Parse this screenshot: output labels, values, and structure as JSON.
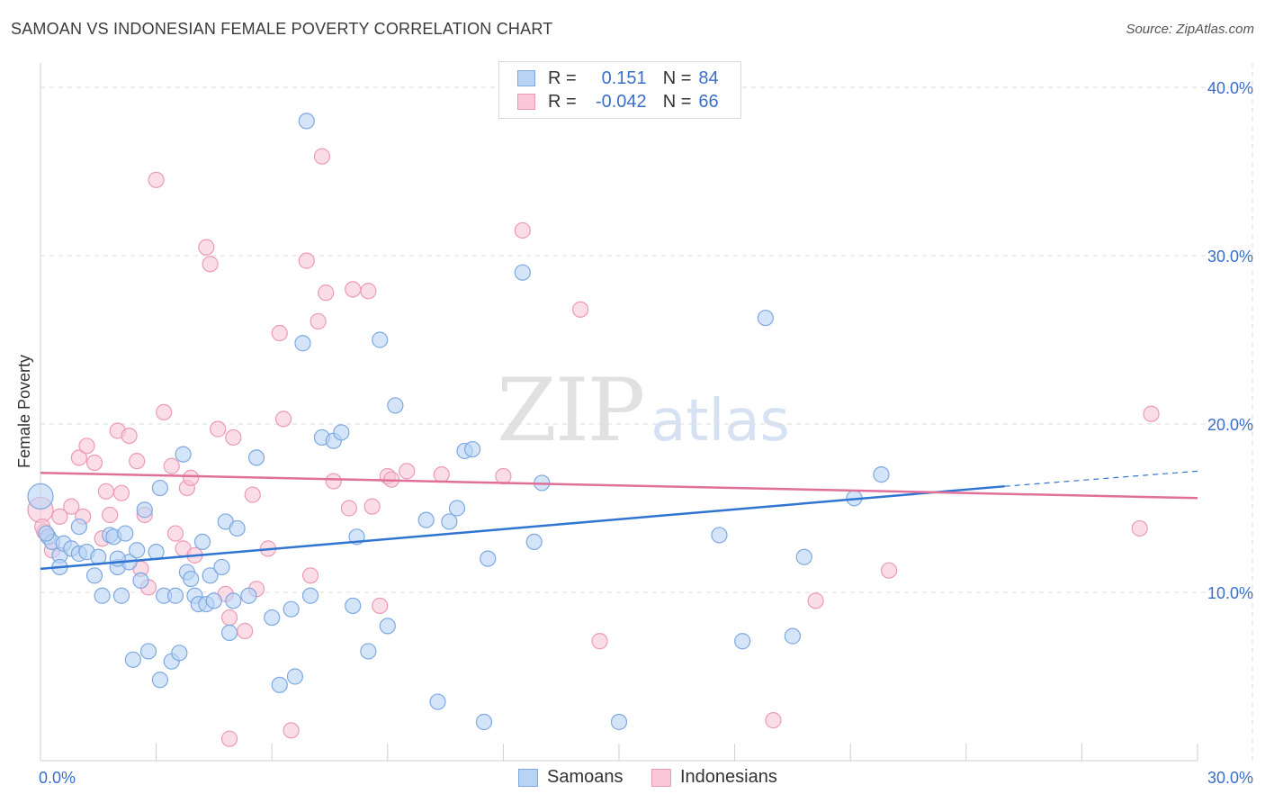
{
  "header": {
    "title": "SAMOAN VS INDONESIAN FEMALE POVERTY CORRELATION CHART",
    "source": "Source: ZipAtlas.com"
  },
  "watermark": {
    "zip": "ZIP",
    "atlas": "atlas"
  },
  "legend": {
    "rows": [
      {
        "r_label": "R =",
        "r_value": "0.151",
        "n_label": "N =",
        "n_value": "84"
      },
      {
        "r_label": "R =",
        "r_value": "-0.042",
        "n_label": "N =",
        "n_value": "66"
      }
    ]
  },
  "bottom_legend": {
    "samoans": "Samoans",
    "indonesians": "Indonesians"
  },
  "colors": {
    "samoan_fill": "#b9d3f5",
    "samoan_stroke": "#7ea9e0",
    "samoan_line": "#2f75d1",
    "indonesian_fill": "#f9c7d7",
    "indonesian_stroke": "#ec9ab5",
    "indonesian_line": "#e0709a",
    "tick_text": "#3a6fc8",
    "grid": "#dddddd"
  },
  "chart_data": {
    "type": "scatter",
    "title": "SAMOAN VS INDONESIAN FEMALE POVERTY CORRELATION CHART",
    "xlabel": "",
    "ylabel": "Female Poverty",
    "xlim": [
      0,
      30
    ],
    "ylim": [
      0,
      40
    ],
    "x_tick_labels": [
      "0.0%",
      "30.0%"
    ],
    "y_ticks": [
      10,
      20,
      30,
      40
    ],
    "y_tick_labels": [
      "10.0%",
      "20.0%",
      "30.0%",
      "40.0%"
    ],
    "grid": true,
    "legend_position": "top-center",
    "series": [
      {
        "name": "Samoans",
        "r": 0.151,
        "n": 84,
        "trend": {
          "x": [
            0,
            25
          ],
          "y": [
            11.4,
            16.3
          ],
          "dash_to": [
            30,
            17.2
          ]
        },
        "points": [
          [
            0.0,
            15.7
          ],
          [
            0.2,
            13.3
          ],
          [
            0.3,
            13.0
          ],
          [
            0.5,
            12.2
          ],
          [
            0.5,
            11.5
          ],
          [
            0.6,
            12.9
          ],
          [
            0.8,
            12.6
          ],
          [
            1.0,
            12.3
          ],
          [
            1.0,
            13.9
          ],
          [
            1.2,
            12.4
          ],
          [
            1.4,
            11.0
          ],
          [
            1.5,
            12.1
          ],
          [
            1.6,
            9.8
          ],
          [
            1.8,
            13.4
          ],
          [
            1.9,
            13.3
          ],
          [
            2.0,
            11.5
          ],
          [
            2.1,
            9.8
          ],
          [
            2.2,
            13.5
          ],
          [
            2.3,
            11.8
          ],
          [
            2.4,
            6.0
          ],
          [
            2.5,
            12.5
          ],
          [
            2.6,
            10.7
          ],
          [
            2.7,
            14.9
          ],
          [
            2.8,
            6.5
          ],
          [
            3.0,
            12.4
          ],
          [
            3.1,
            4.8
          ],
          [
            3.1,
            16.2
          ],
          [
            3.2,
            9.8
          ],
          [
            3.4,
            5.9
          ],
          [
            3.5,
            9.8
          ],
          [
            3.6,
            6.4
          ],
          [
            3.7,
            18.2
          ],
          [
            3.8,
            11.2
          ],
          [
            3.9,
            10.8
          ],
          [
            4.0,
            9.8
          ],
          [
            4.1,
            9.3
          ],
          [
            4.2,
            13.0
          ],
          [
            4.3,
            9.3
          ],
          [
            4.4,
            11.0
          ],
          [
            4.5,
            9.5
          ],
          [
            4.7,
            11.5
          ],
          [
            4.8,
            14.2
          ],
          [
            4.9,
            7.6
          ],
          [
            5.0,
            9.5
          ],
          [
            5.1,
            13.8
          ],
          [
            5.4,
            9.8
          ],
          [
            5.6,
            18.0
          ],
          [
            6.0,
            8.5
          ],
          [
            6.2,
            4.5
          ],
          [
            6.5,
            9.0
          ],
          [
            6.6,
            5.0
          ],
          [
            6.8,
            24.8
          ],
          [
            6.9,
            38.0
          ],
          [
            7.0,
            9.8
          ],
          [
            7.3,
            19.2
          ],
          [
            7.6,
            19.0
          ],
          [
            7.8,
            19.5
          ],
          [
            8.1,
            9.2
          ],
          [
            8.2,
            13.3
          ],
          [
            8.5,
            6.5
          ],
          [
            8.8,
            25.0
          ],
          [
            9.0,
            8.0
          ],
          [
            9.2,
            21.1
          ],
          [
            10.0,
            14.3
          ],
          [
            10.3,
            3.5
          ],
          [
            10.6,
            14.2
          ],
          [
            10.8,
            15.0
          ],
          [
            11.0,
            18.4
          ],
          [
            11.2,
            18.5
          ],
          [
            11.5,
            2.3
          ],
          [
            11.6,
            12.0
          ],
          [
            12.5,
            29.0
          ],
          [
            12.8,
            13.0
          ],
          [
            13.0,
            16.5
          ],
          [
            15.0,
            2.3
          ],
          [
            17.6,
            13.4
          ],
          [
            18.2,
            7.1
          ],
          [
            18.8,
            26.3
          ],
          [
            19.5,
            7.4
          ],
          [
            19.8,
            12.1
          ],
          [
            21.1,
            15.6
          ],
          [
            21.8,
            17.0
          ],
          [
            0.15,
            13.5
          ],
          [
            2.0,
            12.0
          ]
        ]
      },
      {
        "name": "Indonesians",
        "r": -0.042,
        "n": 66,
        "trend": {
          "x": [
            0,
            30
          ],
          "y": [
            17.1,
            15.6
          ]
        },
        "points": [
          [
            0.0,
            14.9
          ],
          [
            0.1,
            13.6
          ],
          [
            0.3,
            12.5
          ],
          [
            0.5,
            14.5
          ],
          [
            0.8,
            15.1
          ],
          [
            1.0,
            18.0
          ],
          [
            1.2,
            18.7
          ],
          [
            1.4,
            17.7
          ],
          [
            1.6,
            13.2
          ],
          [
            1.7,
            16.0
          ],
          [
            1.8,
            14.6
          ],
          [
            2.0,
            19.6
          ],
          [
            2.1,
            15.9
          ],
          [
            2.3,
            19.3
          ],
          [
            2.5,
            17.8
          ],
          [
            2.6,
            11.4
          ],
          [
            2.7,
            14.6
          ],
          [
            2.8,
            10.3
          ],
          [
            3.0,
            34.5
          ],
          [
            3.2,
            20.7
          ],
          [
            3.4,
            17.5
          ],
          [
            3.5,
            13.5
          ],
          [
            3.7,
            12.6
          ],
          [
            3.8,
            16.2
          ],
          [
            3.9,
            16.8
          ],
          [
            4.0,
            12.2
          ],
          [
            4.3,
            30.5
          ],
          [
            4.4,
            29.5
          ],
          [
            4.6,
            19.7
          ],
          [
            4.8,
            9.9
          ],
          [
            4.9,
            8.5
          ],
          [
            5.0,
            19.2
          ],
          [
            5.3,
            7.7
          ],
          [
            5.5,
            15.8
          ],
          [
            5.6,
            10.2
          ],
          [
            5.9,
            12.6
          ],
          [
            6.2,
            25.4
          ],
          [
            6.3,
            20.3
          ],
          [
            6.5,
            1.8
          ],
          [
            6.9,
            29.7
          ],
          [
            7.0,
            11.0
          ],
          [
            7.2,
            26.1
          ],
          [
            7.3,
            35.9
          ],
          [
            7.4,
            27.8
          ],
          [
            7.6,
            16.6
          ],
          [
            8.0,
            15.0
          ],
          [
            8.1,
            28.0
          ],
          [
            8.5,
            27.9
          ],
          [
            8.6,
            15.1
          ],
          [
            8.8,
            9.2
          ],
          [
            9.0,
            16.9
          ],
          [
            9.1,
            16.7
          ],
          [
            9.5,
            17.2
          ],
          [
            10.4,
            17.0
          ],
          [
            12.0,
            16.9
          ],
          [
            12.5,
            31.5
          ],
          [
            14.0,
            26.8
          ],
          [
            14.5,
            7.1
          ],
          [
            19.0,
            2.4
          ],
          [
            20.1,
            9.5
          ],
          [
            22.0,
            11.3
          ],
          [
            28.5,
            13.8
          ],
          [
            28.8,
            20.6
          ],
          [
            4.9,
            1.3
          ],
          [
            1.1,
            14.5
          ],
          [
            0.05,
            13.9
          ]
        ]
      }
    ]
  }
}
